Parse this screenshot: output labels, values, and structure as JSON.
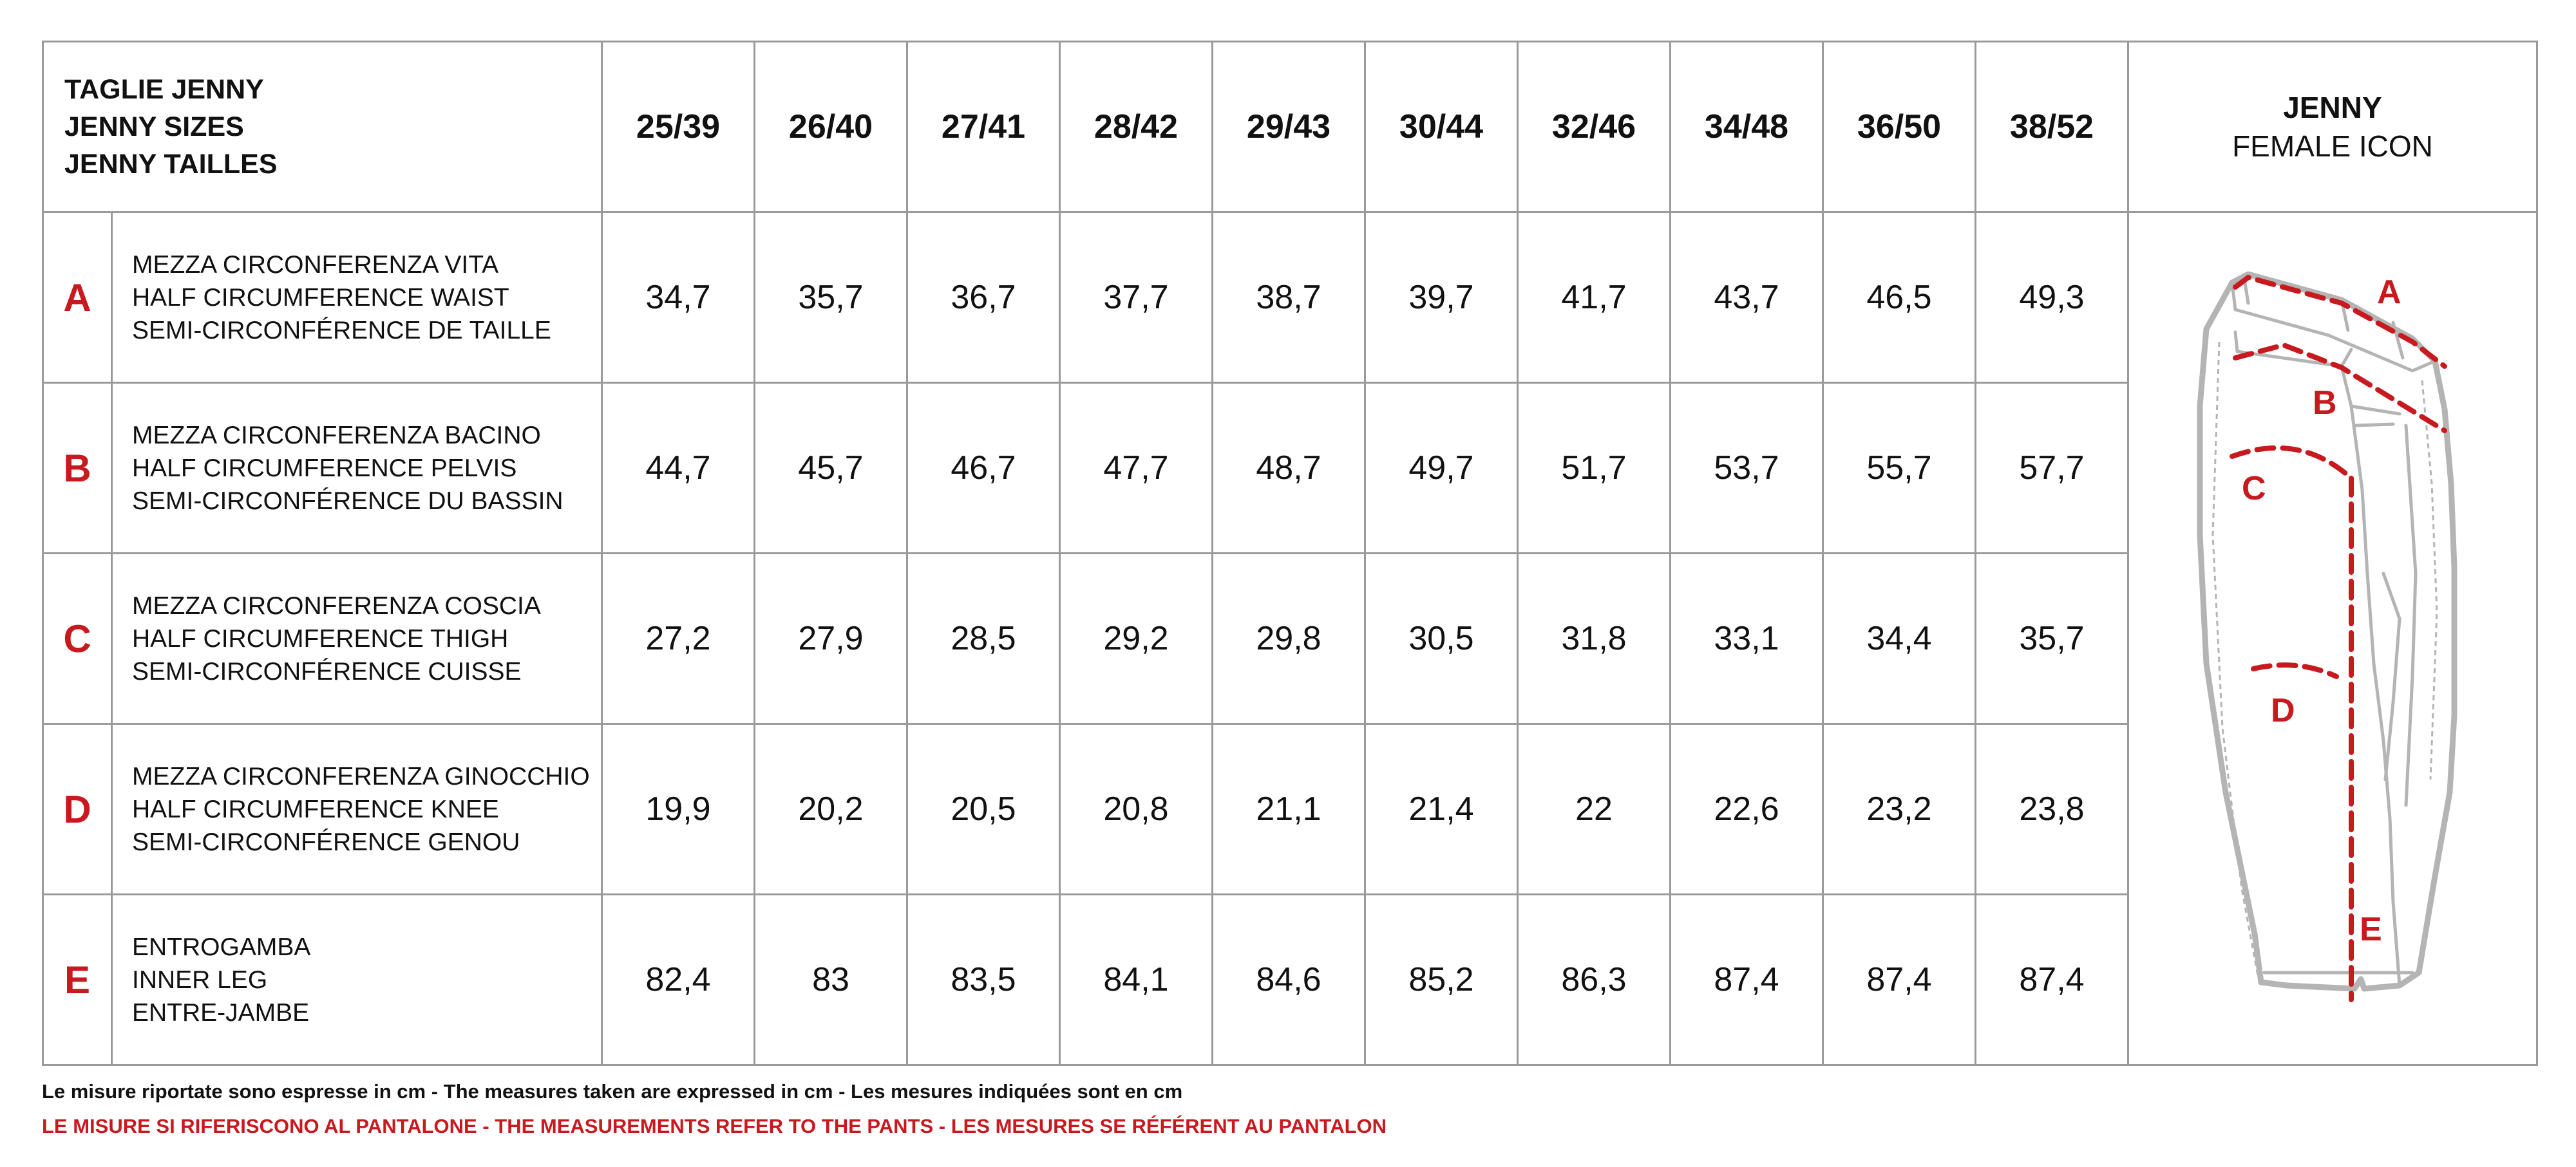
{
  "header": {
    "title_lines": [
      "TAGLIE JENNY",
      "JENNY SIZES",
      "JENNY TAILLES"
    ],
    "sizes": [
      "25/39",
      "26/40",
      "27/41",
      "28/42",
      "29/43",
      "30/44",
      "32/46",
      "34/48",
      "36/50",
      "38/52"
    ],
    "icon_title": "JENNY",
    "icon_subtitle": "FEMALE ICON"
  },
  "rows": [
    {
      "letter": "A",
      "labels": [
        "MEZZA CIRCONFERENZA VITA",
        "HALF CIRCUMFERENCE WAIST",
        "SEMI-CIRCONFÉRENCE DE TAILLE"
      ],
      "values": [
        "34,7",
        "35,7",
        "36,7",
        "37,7",
        "38,7",
        "39,7",
        "41,7",
        "43,7",
        "46,5",
        "49,3"
      ]
    },
    {
      "letter": "B",
      "labels": [
        "MEZZA CIRCONFERENZA BACINO",
        "HALF CIRCUMFERENCE PELVIS",
        "SEMI-CIRCONFÉRENCE DU BASSIN"
      ],
      "values": [
        "44,7",
        "45,7",
        "46,7",
        "47,7",
        "48,7",
        "49,7",
        "51,7",
        "53,7",
        "55,7",
        "57,7"
      ]
    },
    {
      "letter": "C",
      "labels": [
        "MEZZA CIRCONFERENZA COSCIA",
        "HALF CIRCUMFERENCE THIGH",
        "SEMI-CIRCONFÉRENCE CUISSE"
      ],
      "values": [
        "27,2",
        "27,9",
        "28,5",
        "29,2",
        "29,8",
        "30,5",
        "31,8",
        "33,1",
        "34,4",
        "35,7"
      ]
    },
    {
      "letter": "D",
      "labels": [
        "MEZZA CIRCONFERENZA GINOCCHIO",
        "HALF CIRCUMFERENCE KNEE",
        "SEMI-CIRCONFÉRENCE GENOU"
      ],
      "values": [
        "19,9",
        "20,2",
        "20,5",
        "20,8",
        "21,1",
        "21,4",
        "22",
        "22,6",
        "23,2",
        "23,8"
      ]
    },
    {
      "letter": "E",
      "labels": [
        "ENTROGAMBA",
        "INNER LEG",
        "ENTRE-JAMBE"
      ],
      "values": [
        "82,4",
        "83",
        "83,5",
        "84,1",
        "84,6",
        "85,2",
        "86,3",
        "87,4",
        "87,4",
        "87,4"
      ]
    }
  ],
  "illustration": {
    "icon": "pants-measurement-icon",
    "labels": [
      "A",
      "B",
      "C",
      "D",
      "E"
    ]
  },
  "footer": {
    "note": "Le misure riportate sono espresse in cm - The measures taken are expressed in cm - Les mesures indiquées sont en cm",
    "warning": "LE MISURE SI RIFERISCONO AL PANTALONE - THE MEASUREMENTS REFER TO THE PANTS - LES MESURES SE RÉFÉRENT AU PANTALON"
  },
  "colors": {
    "accent_red": "#c8191e",
    "grid_gray": "#9a9a9a",
    "pants_gray": "#b4b4b4"
  }
}
